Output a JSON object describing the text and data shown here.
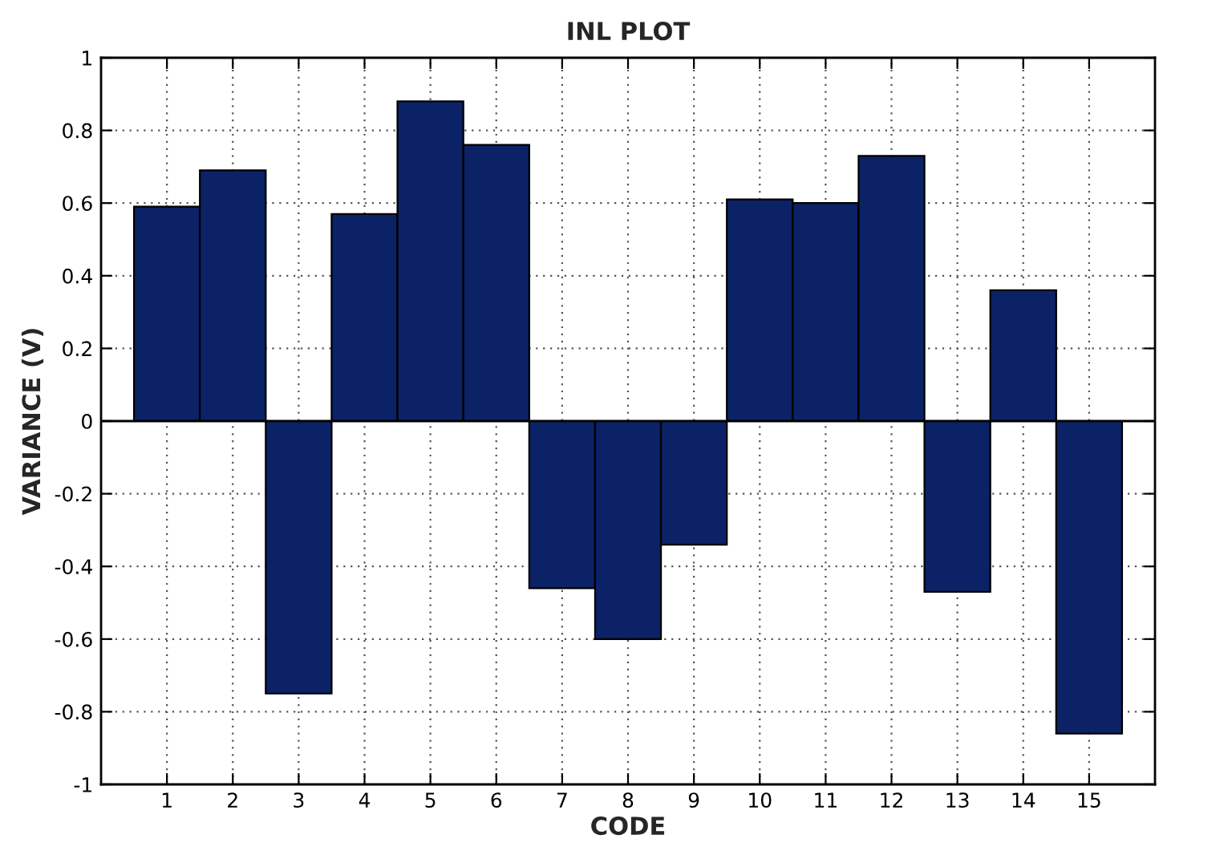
{
  "chart_data": {
    "type": "bar",
    "title": "INL PLOT",
    "xlabel": "CODE",
    "ylabel": "VARIANCE (V)",
    "categories": [
      "1",
      "2",
      "3",
      "4",
      "5",
      "6",
      "7",
      "8",
      "9",
      "10",
      "11",
      "12",
      "13",
      "14",
      "15"
    ],
    "values": [
      0.59,
      0.69,
      -0.75,
      0.57,
      0.88,
      0.76,
      -0.46,
      -0.6,
      -0.34,
      0.61,
      0.6,
      0.73,
      -0.47,
      0.36,
      -0.86
    ],
    "color": "#0c2266",
    "ylim": [
      -1,
      1
    ],
    "yticks": [
      -1,
      -0.8,
      -0.6,
      -0.4,
      -0.2,
      0,
      0.2,
      0.4,
      0.6,
      0.8,
      1
    ],
    "ref_lines": [
      {
        "axis": "y",
        "value": 0,
        "color": "#000000"
      }
    ],
    "grid": true
  }
}
